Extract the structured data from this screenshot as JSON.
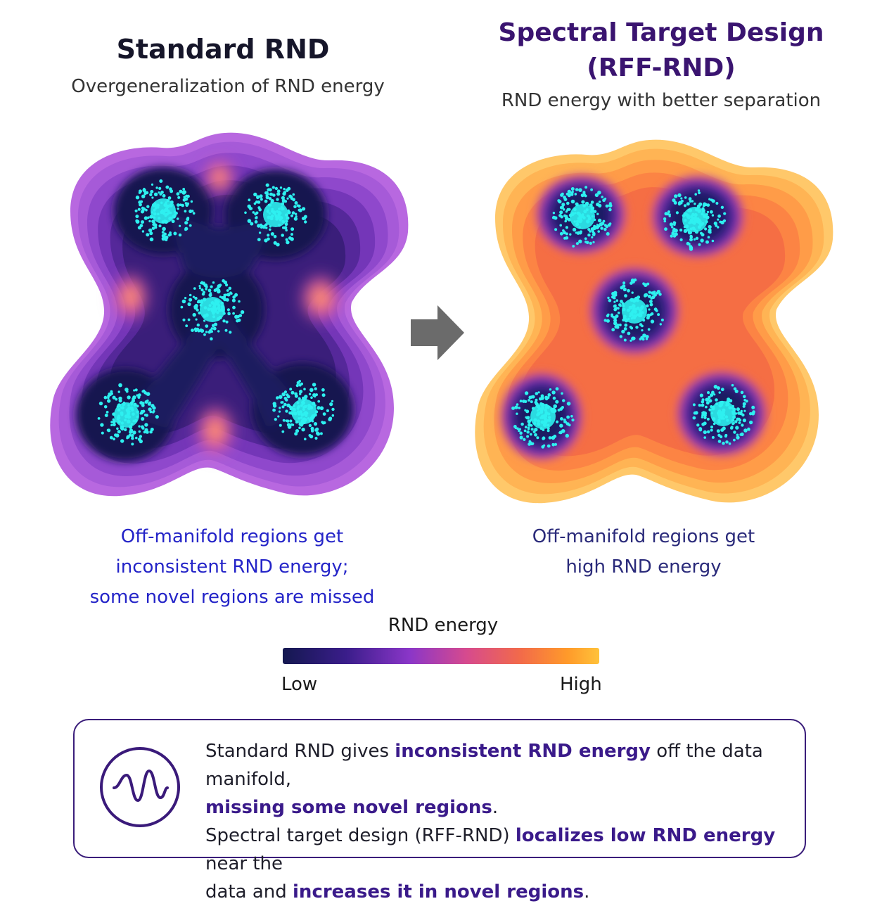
{
  "left_panel": {
    "title": "Standard RND",
    "subtitle": "Overgeneralization of RND energy",
    "caption_lines": [
      "Off-manifold regions get",
      "inconsistent RND energy;",
      "some novel regions are missed"
    ]
  },
  "right_panel": {
    "title_lines": [
      "Spectral Target Design",
      "(RFF-RND)"
    ],
    "subtitle": "RND energy with better separation",
    "caption_lines": [
      "Off-manifold regions get",
      "high RND energy"
    ]
  },
  "colorbar": {
    "title": "RND energy",
    "low_label": "Low",
    "high_label": "High",
    "colors": [
      "#141850",
      "#3a1d8a",
      "#8a36c8",
      "#d64a8e",
      "#f26a4a",
      "#ff9a2a",
      "#ffc23a"
    ]
  },
  "summary": {
    "icon": "wave-icon",
    "segments": [
      {
        "text": "Standard RND gives ",
        "bold": false
      },
      {
        "text": "inconsistent RND energy",
        "bold": true
      },
      {
        "text": " off the data manifold,",
        "bold": false
      },
      {
        "text": "\n",
        "bold": false
      },
      {
        "text": "missing some novel regions",
        "bold": true
      },
      {
        "text": ".",
        "bold": false
      },
      {
        "text": "\n",
        "bold": false
      },
      {
        "text": "Spectral target design (RFF-RND) ",
        "bold": false
      },
      {
        "text": "localizes low RND energy",
        "bold": true
      },
      {
        "text": " near the",
        "bold": false
      },
      {
        "text": "\n",
        "bold": false
      },
      {
        "text": "data and ",
        "bold": false
      },
      {
        "text": "increases it in novel regions",
        "bold": true
      },
      {
        "text": ".",
        "bold": false
      }
    ]
  },
  "colors": {
    "cluster_points": "#2ef0f0",
    "right_title": "#3a1470",
    "left_caption": "#2424c8",
    "border": "#3a1d7a"
  }
}
